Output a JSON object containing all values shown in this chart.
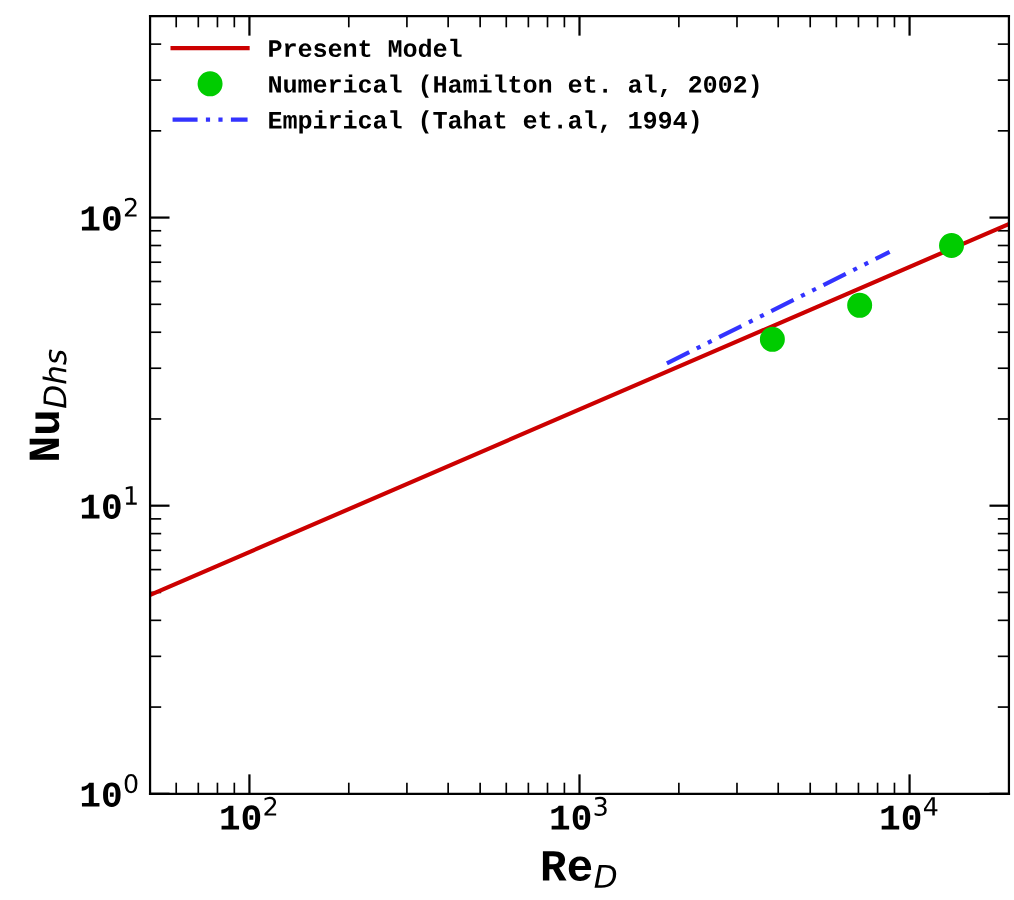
{
  "chart_data": {
    "type": "line",
    "xlabel": "Re$_{D}$",
    "ylabel": "Nu$_{Dhs}$",
    "log": "xy",
    "xlim": [
      50,
      20000
    ],
    "ylim": [
      1,
      500
    ],
    "xticks": [
      {
        "value": 100,
        "label": "10$^{2}$"
      },
      {
        "value": 1000,
        "label": "10$^{3}$"
      },
      {
        "value": 10000,
        "label": "10$^{4}$"
      }
    ],
    "yticks": [
      {
        "value": 1,
        "label": "10$^{0}$"
      },
      {
        "value": 10,
        "label": "10$^{1}$"
      },
      {
        "value": 100,
        "label": "10$^{2}$"
      }
    ],
    "legend": "top left",
    "grid": false,
    "series": [
      {
        "name": "Present Model",
        "color": "#cc0000",
        "line_style": "solid",
        "x": [
          50,
          20000
        ],
        "values": [
          4.9,
          95
        ]
      },
      {
        "name": "Numerical (Hamilton et. al, 2002)",
        "type": "scatter",
        "color": "#00cc00",
        "marker": "circle",
        "x": [
          3840,
          7060,
          13400
        ],
        "values": [
          37.8,
          49.6,
          80
        ]
      },
      {
        "name": "Empirical (Tahat et.al, 1994)",
        "type": "line",
        "color": "#3333ff",
        "line_style": "dashdotdot",
        "x": [
          1840,
          8700
        ],
        "values": [
          31.2,
          76
        ]
      }
    ]
  }
}
